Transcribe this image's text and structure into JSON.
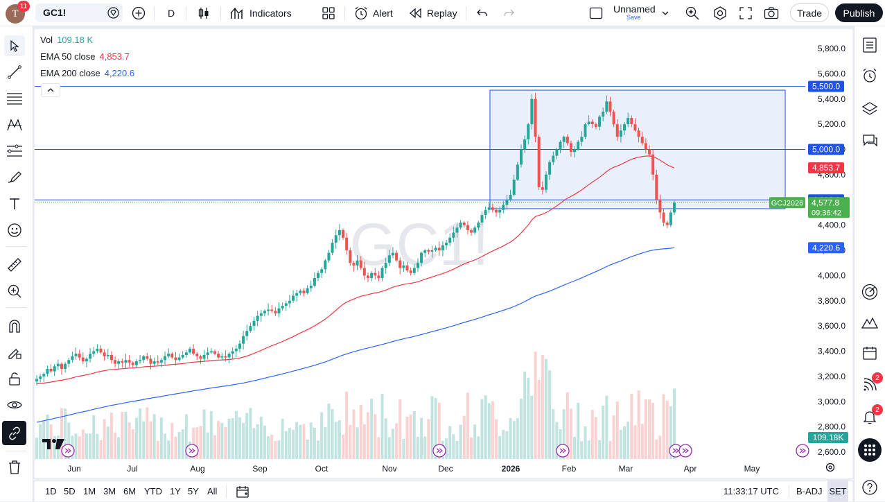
{
  "header": {
    "avatar_letter": "T",
    "notifications": "11",
    "symbol": "GC1!",
    "interval": "D",
    "indicators": "Indicators",
    "alert": "Alert",
    "replay": "Replay",
    "layout_name": "Unnamed",
    "save_label": "Save",
    "trade": "Trade",
    "publish": "Publish"
  },
  "legend": {
    "vol_label": "Vol",
    "vol_value": "109.18 K",
    "ema50_label": "EMA 50 close",
    "ema50_value": "4,853.7",
    "ema200_label": "EMA 200 close",
    "ema200_value": "4,220.6"
  },
  "watermark": "GC1!",
  "colors": {
    "up": "#26a69a",
    "down": "#ef5350",
    "ema50": "#f23645",
    "ema200": "#2962ff",
    "hline": "#1e53e5",
    "rect_fill": "#e3ebfa",
    "last_price": "#4caf50"
  },
  "price_axis": {
    "ticks": [
      "5,800.0",
      "5,600.0",
      "5,400.0",
      "5,200.0",
      "5,000.0",
      "4,800.0",
      "4,600.0",
      "4,400.0",
      "4,200.0",
      "4,000.0",
      "3,800.0",
      "3,600.0",
      "3,400.0",
      "3,200.0",
      "3,000.0",
      "2,800.0",
      "2,600.0"
    ],
    "tags": {
      "h5500": "5,500.0",
      "h5000": "5,000.0",
      "ema50": "4,853.7",
      "h4600": "4,600.0",
      "last": "4,577.8",
      "countdown": "09:36:42",
      "contract": "GCJ2026",
      "ema200": "4,220.6",
      "volume": "109.18K"
    }
  },
  "time_axis": [
    "Jun",
    "Jul",
    "Aug",
    "Sep",
    "Oct",
    "Nov",
    "Dec",
    "2026",
    "Feb",
    "Mar",
    "Apr",
    "May"
  ],
  "bottom": {
    "ranges": [
      "1D",
      "5D",
      "1M",
      "3M",
      "6M",
      "YTD",
      "1Y",
      "5Y",
      "All"
    ],
    "time": "11:33:17 UTC",
    "badj": "B-ADJ",
    "set": "SET"
  },
  "right_badges": {
    "ideas": "2",
    "alerts": "2"
  },
  "chart_data": {
    "type": "candlestick",
    "series_price": [
      3180,
      3200,
      3220,
      3260,
      3240,
      3280,
      3300,
      3260,
      3300,
      3330,
      3360,
      3380,
      3350,
      3320,
      3340,
      3380,
      3400,
      3420,
      3390,
      3360,
      3370,
      3330,
      3300,
      3320,
      3310,
      3330,
      3310,
      3290,
      3320,
      3330,
      3360,
      3340,
      3300,
      3320,
      3310,
      3330,
      3360,
      3380,
      3350,
      3330,
      3350,
      3370,
      3390,
      3420,
      3380,
      3360,
      3340,
      3370,
      3390,
      3400,
      3380,
      3350,
      3360,
      3350,
      3380,
      3400,
      3420,
      3460,
      3520,
      3560,
      3600,
      3640,
      3680,
      3700,
      3720,
      3730,
      3720,
      3700,
      3740,
      3760,
      3780,
      3800,
      3840,
      3860,
      3880,
      3860,
      3900,
      3920,
      3980,
      4020,
      4050,
      4120,
      4180,
      4260,
      4320,
      4360,
      4300,
      4200,
      4100,
      4080,
      4120,
      4060,
      4000,
      3980,
      4020,
      4000,
      3980,
      4060,
      4100,
      4160,
      4180,
      4120,
      4060,
      4080,
      4040,
      4020,
      4060,
      4100,
      4180,
      4200,
      4190,
      4200,
      4220,
      4200,
      4240,
      4260,
      4300,
      4340,
      4380,
      4420,
      4400,
      4360,
      4340,
      4380,
      4420,
      4480,
      4520,
      4540,
      4520,
      4500,
      4520,
      4560,
      4600,
      4640,
      4760,
      4880,
      5000,
      5080,
      5200,
      5400,
      5100,
      4700,
      4680,
      4800,
      4900,
      4950,
      5000,
      5060,
      5100,
      5050,
      4980,
      5000,
      5060,
      5100,
      5200,
      5220,
      5200,
      5180,
      5260,
      5300,
      5380,
      5300,
      5200,
      5100,
      5150,
      5200,
      5250,
      5200,
      5150,
      5100,
      5050,
      5000,
      4960,
      4800,
      4600,
      4500,
      4420,
      4400,
      4500,
      4577.8
    ],
    "x_range": [
      "May 2025",
      "May 2026"
    ],
    "ylim": [
      2550,
      5900
    ],
    "ema50": {
      "name": "EMA 50 close",
      "last": 4853.7
    },
    "ema200": {
      "name": "EMA 200 close",
      "last": 4220.6
    },
    "horizontal_lines": [
      5500,
      5000,
      4600
    ],
    "rectangle": {
      "top": 5470,
      "bottom": 4530
    },
    "last_price": 4577.8
  }
}
